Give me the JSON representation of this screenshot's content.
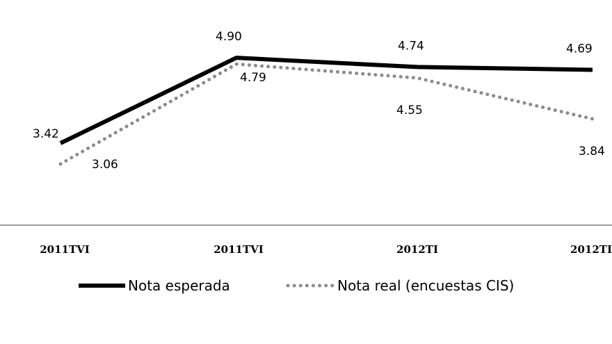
{
  "chart_data": {
    "type": "line",
    "categories": [
      "2011TVI",
      "2011TVI",
      "2012TI",
      "2012TI"
    ],
    "series": [
      {
        "name": "Nota esperada",
        "values": [
          3.42,
          4.9,
          4.74,
          4.69
        ],
        "labels": [
          "3.42",
          "4.90",
          "4.74",
          "4.69"
        ],
        "color": "#000000",
        "style": "solid"
      },
      {
        "name": "Nota real (encuestas CIS)",
        "values": [
          3.06,
          4.79,
          4.55,
          3.84
        ],
        "labels": [
          "3.06",
          "4.79",
          "4.55",
          "3.84"
        ],
        "color": "#8c8c8c",
        "style": "dotted"
      }
    ],
    "ylim": [
      2.0,
      5.9
    ],
    "grid": false,
    "legend": "bottom"
  }
}
